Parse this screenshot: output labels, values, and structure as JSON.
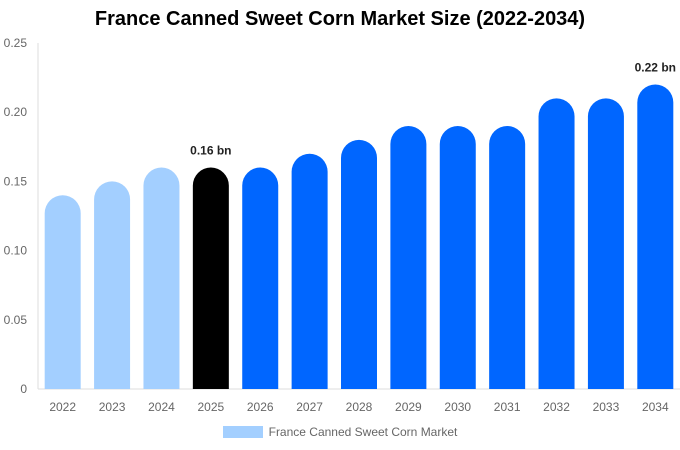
{
  "chart_data": {
    "type": "bar",
    "title": "France Canned Sweet Corn Market Size (2022-2034)",
    "xlabel": "",
    "ylabel": "",
    "categories": [
      "2022",
      "2023",
      "2024",
      "2025",
      "2026",
      "2027",
      "2028",
      "2029",
      "2030",
      "2031",
      "2032",
      "2033",
      "2034"
    ],
    "series": [
      {
        "name": "France Canned Sweet Corn Market",
        "values": [
          0.14,
          0.15,
          0.16,
          0.16,
          0.16,
          0.17,
          0.18,
          0.19,
          0.19,
          0.19,
          0.21,
          0.21,
          0.22
        ]
      }
    ],
    "ylim": [
      0,
      0.25
    ],
    "yticks": [
      "0",
      "0.05",
      "0.10",
      "0.15",
      "0.20",
      "0.25"
    ],
    "data_labels": [
      {
        "category": "2025",
        "text": "0.16 bn"
      },
      {
        "category": "2034",
        "text": "0.22 bn"
      }
    ],
    "colors": {
      "historical": "#a3cfff",
      "current": "#000000",
      "forecast": "#0066ff"
    },
    "bar_color_groups": [
      "historical",
      "historical",
      "historical",
      "current",
      "forecast",
      "forecast",
      "forecast",
      "forecast",
      "forecast",
      "forecast",
      "forecast",
      "forecast",
      "forecast"
    ],
    "grid": false,
    "legend": "bottom"
  }
}
